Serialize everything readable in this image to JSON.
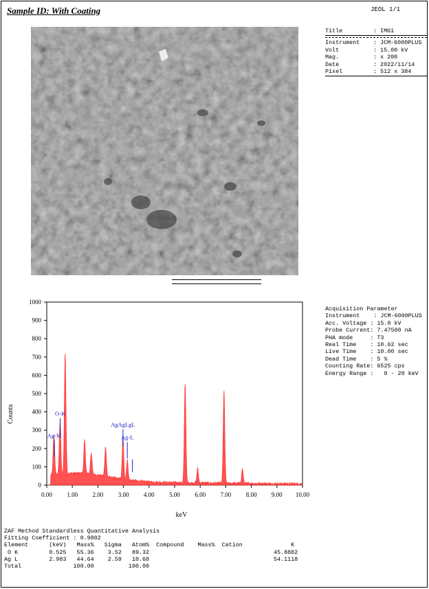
{
  "header": {
    "sample_id": "Sample ID: With Coating",
    "page": "JEOL  1/1"
  },
  "image_info": {
    "title": {
      "label": "Title",
      "value": ": IMG1"
    },
    "rows": [
      {
        "label": "Instrument",
        "value": ": JCM-6000PLUS"
      },
      {
        "label": "Volt",
        "value": ": 15.00 kV"
      },
      {
        "label": "Mag.",
        "value": ": x 200"
      },
      {
        "label": "Date",
        "value": ": 2022/11/14"
      },
      {
        "label": "Pixel",
        "value": ": 512 x 384"
      }
    ]
  },
  "acquisition": {
    "heading": "Acquisition Parameter",
    "lines": [
      "Instrument    : JCM-6000PLUS",
      "Acc. Voltage : 15.0 kV",
      "Probe Current: 7.47500 nA",
      "PHA mode     : T3",
      "Real Time    : 10.62 sec",
      "Live Time    : 10.00 sec",
      "Dead Time    : 5 %",
      "Counting Rate: 6525 cps",
      "Energy Range :   0 - 20 keV"
    ]
  },
  "chart_data": {
    "type": "line",
    "xlabel": "keV",
    "ylabel": "Counts",
    "xlim": [
      0,
      10
    ],
    "ylim": [
      0,
      1000
    ],
    "x_ticks": [
      "0.00",
      "1.00",
      "2.00",
      "3.00",
      "4.00",
      "5.00",
      "6.00",
      "7.00",
      "8.00",
      "9.00",
      "10.00"
    ],
    "y_ticks": [
      "0",
      "100",
      "200",
      "300",
      "400",
      "500",
      "600",
      "700",
      "800",
      "900",
      "1000"
    ],
    "color": "#ff3333",
    "peaks": [
      {
        "x": 0.28,
        "y": 220
      },
      {
        "x": 0.52,
        "y": 290
      },
      {
        "x": 0.72,
        "y": 660
      },
      {
        "x": 1.48,
        "y": 180
      },
      {
        "x": 1.74,
        "y": 120
      },
      {
        "x": 2.3,
        "y": 165
      },
      {
        "x": 2.98,
        "y": 225
      },
      {
        "x": 3.15,
        "y": 110
      },
      {
        "x": 5.41,
        "y": 545
      },
      {
        "x": 5.9,
        "y": 80
      },
      {
        "x": 6.93,
        "y": 505
      },
      {
        "x": 7.65,
        "y": 80
      }
    ],
    "annotations": [
      {
        "text": "O-K",
        "x": 0.525,
        "y": 380
      },
      {
        "text": "Ag-M",
        "x": 0.3,
        "y": 260
      },
      {
        "text": "AgAgLgL",
        "x": 2.98,
        "y": 320
      },
      {
        "text": "Ag-L",
        "x": 3.15,
        "y": 250
      }
    ]
  },
  "zaf": {
    "title": "ZAF Method Standardless Quantitative Analysis",
    "fitting": "Fitting Coefficient : 0.9882",
    "header": "Element      (keV)   Mass%   Sigma   Atom%  Compound    Mass%  Cation              K",
    "rows": [
      " O K         0.525   55.36    3.52   89.32                                    45.8882",
      "Ag L         2.983   44.64    2.59   10.68                                    54.1118",
      "Total               100.00          100.00"
    ]
  }
}
